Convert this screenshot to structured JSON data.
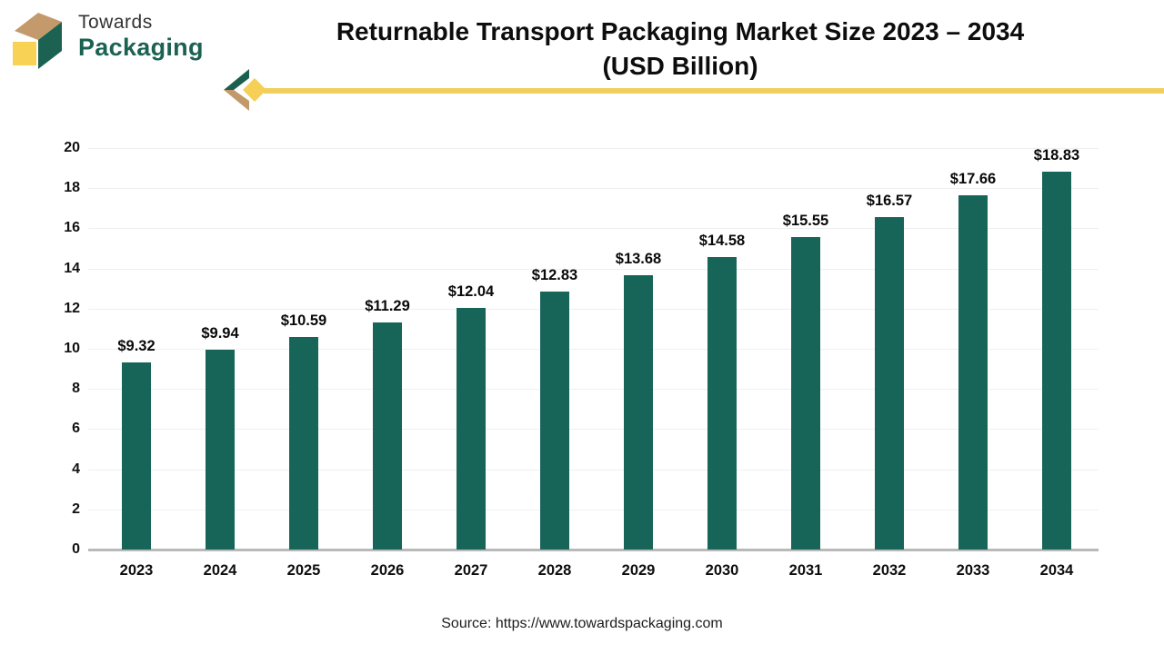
{
  "logo": {
    "line1": "Towards",
    "line2": "Packaging"
  },
  "header": {
    "title_line1": "Returnable Transport Packaging Market Size 2023 – 2034",
    "title_line2": "(USD Billion)"
  },
  "source": "Source: https://www.towardspackaging.com",
  "colors": {
    "bar": "#176559",
    "grid": "#eef0f0",
    "axis_line": "#b9b9b9",
    "divider_yellow": "#f0ce5f",
    "logo_green": "#1b6252",
    "logo_tan": "#c49a6c",
    "logo_yellow": "#f7d254"
  },
  "chart_data": {
    "type": "bar",
    "title": "Returnable Transport Packaging Market Size 2023 – 2034 (USD Billion)",
    "categories": [
      "2023",
      "2024",
      "2025",
      "2026",
      "2027",
      "2028",
      "2029",
      "2030",
      "2031",
      "2032",
      "2033",
      "2034"
    ],
    "values": [
      9.32,
      9.94,
      10.59,
      11.29,
      12.04,
      12.83,
      13.68,
      14.58,
      15.55,
      16.57,
      17.66,
      18.83
    ],
    "value_labels": [
      "$9.32",
      "$9.94",
      "$10.59",
      "$11.29",
      "$12.04",
      "$12.83",
      "$13.68",
      "$14.58",
      "$15.55",
      "$16.57",
      "$17.66",
      "$18.83"
    ],
    "xlabel": "",
    "ylabel": "",
    "ylim": [
      0,
      20
    ],
    "ytick_step": 2,
    "yticks": [
      0,
      2,
      4,
      6,
      8,
      10,
      12,
      14,
      16,
      18,
      20
    ],
    "grid": "horizontal",
    "legend": false,
    "bar_color": "#176559"
  }
}
